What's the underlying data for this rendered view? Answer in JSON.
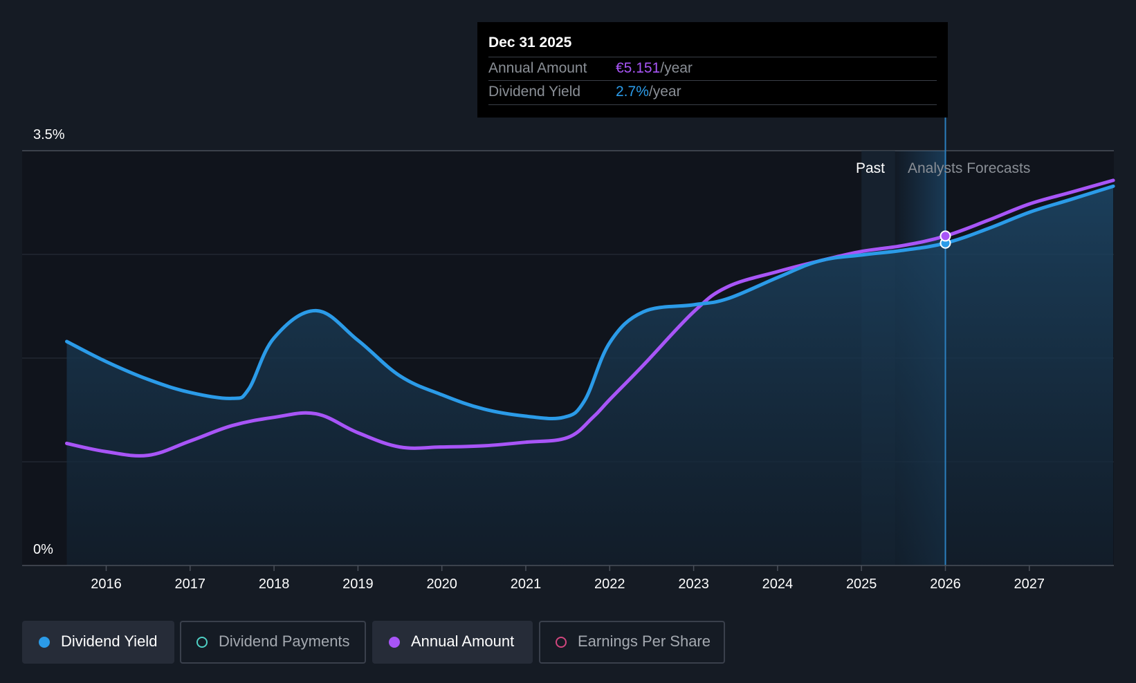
{
  "tooltip": {
    "date": "Dec 31 2025",
    "rows": [
      {
        "label": "Annual Amount",
        "value": "€5.151",
        "suffix": "/year"
      },
      {
        "label": "Dividend Yield",
        "value": "2.7%",
        "suffix": "/year"
      }
    ]
  },
  "regions": {
    "past": "Past",
    "forecast": "Analysts Forecasts"
  },
  "legend": [
    {
      "label": "Dividend Yield",
      "color": "#2b9be8",
      "filled": true,
      "active": true
    },
    {
      "label": "Dividend Payments",
      "color": "#4fd1c5",
      "filled": false,
      "active": false
    },
    {
      "label": "Annual Amount",
      "color": "#a855f7",
      "filled": true,
      "active": true
    },
    {
      "label": "Earnings Per Share",
      "color": "#d1467e",
      "filled": false,
      "active": false
    }
  ],
  "colors": {
    "yield": "#2b9be8",
    "amount": "#a855f7",
    "background": "#151b24"
  },
  "chart_data": {
    "type": "line",
    "y_axis": {
      "label_top": "3.5%",
      "label_bottom": "0%",
      "ylim": [
        0,
        3.5
      ],
      "unit": "%"
    },
    "x_axis": {
      "ticks": [
        "2016",
        "2017",
        "2018",
        "2019",
        "2020",
        "2021",
        "2022",
        "2023",
        "2024",
        "2025",
        "2026",
        "2027"
      ],
      "xlim": [
        2015.5,
        2028.0
      ]
    },
    "grid": true,
    "series": [
      {
        "name": "Dividend Yield",
        "unit": "%",
        "points": [
          [
            2015.53,
            1.89
          ],
          [
            2016.0,
            1.72
          ],
          [
            2016.5,
            1.57
          ],
          [
            2017.0,
            1.46
          ],
          [
            2017.5,
            1.41
          ],
          [
            2017.7,
            1.49
          ],
          [
            2018.0,
            1.92
          ],
          [
            2018.5,
            2.15
          ],
          [
            2019.0,
            1.9
          ],
          [
            2019.5,
            1.6
          ],
          [
            2020.0,
            1.44
          ],
          [
            2020.5,
            1.32
          ],
          [
            2021.0,
            1.26
          ],
          [
            2021.45,
            1.25
          ],
          [
            2021.7,
            1.39
          ],
          [
            2022.0,
            1.88
          ],
          [
            2022.4,
            2.14
          ],
          [
            2023.0,
            2.2
          ],
          [
            2023.4,
            2.25
          ],
          [
            2024.0,
            2.43
          ],
          [
            2024.5,
            2.57
          ],
          [
            2025.0,
            2.62
          ],
          [
            2025.5,
            2.66
          ],
          [
            2026.0,
            2.72
          ],
          [
            2026.5,
            2.84
          ],
          [
            2027.0,
            2.98
          ],
          [
            2027.5,
            3.09
          ],
          [
            2028.0,
            3.2
          ]
        ]
      },
      {
        "name": "Annual Amount",
        "unit": "€/year",
        "points": [
          [
            2015.53,
            1.03
          ],
          [
            2016.0,
            0.96
          ],
          [
            2016.5,
            0.93
          ],
          [
            2017.0,
            1.05
          ],
          [
            2017.5,
            1.18
          ],
          [
            2018.0,
            1.25
          ],
          [
            2018.5,
            1.28
          ],
          [
            2019.0,
            1.12
          ],
          [
            2019.5,
            1.0
          ],
          [
            2020.0,
            1.0
          ],
          [
            2020.5,
            1.01
          ],
          [
            2021.0,
            1.04
          ],
          [
            2021.5,
            1.08
          ],
          [
            2021.8,
            1.25
          ],
          [
            2022.0,
            1.4
          ],
          [
            2022.4,
            1.69
          ],
          [
            2023.0,
            2.14
          ],
          [
            2023.4,
            2.35
          ],
          [
            2024.0,
            2.48
          ],
          [
            2024.5,
            2.57
          ],
          [
            2025.0,
            2.65
          ],
          [
            2025.5,
            2.7
          ],
          [
            2026.0,
            2.78
          ],
          [
            2026.5,
            2.91
          ],
          [
            2027.0,
            3.05
          ],
          [
            2027.5,
            3.15
          ],
          [
            2028.0,
            3.25
          ]
        ]
      }
    ],
    "highlight": {
      "x": 2026.0,
      "label": "Dec 31 2025"
    },
    "past_forecast_split": 2025.4
  }
}
